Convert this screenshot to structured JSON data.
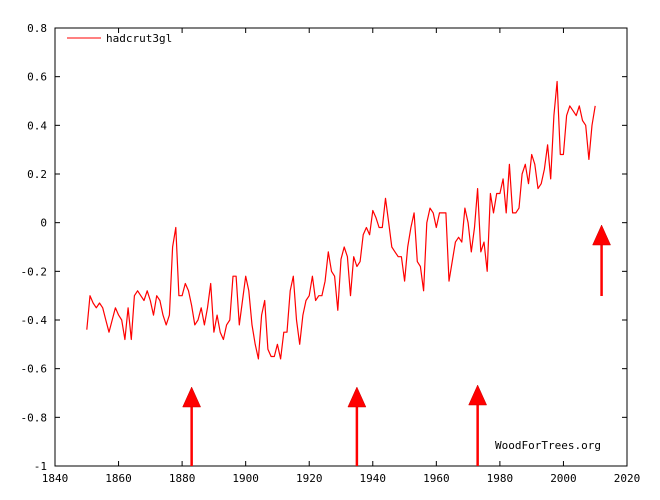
{
  "chart_data": {
    "type": "line",
    "title": "",
    "xlabel": "",
    "ylabel": "",
    "xlim": [
      1840,
      2020
    ],
    "ylim": [
      -1,
      0.8
    ],
    "x_ticks": [
      "1840",
      "1860",
      "1880",
      "1900",
      "1920",
      "1940",
      "1960",
      "1980",
      "2000",
      "2020"
    ],
    "y_ticks": [
      "0.8",
      "0.6",
      "0.4",
      "0.2",
      "0",
      "-0.2",
      "-0.4",
      "-0.6",
      "-0.8",
      "-1"
    ],
    "grid": false,
    "legend_position": "top-left",
    "series": [
      {
        "name": "hadcrut3gl",
        "color": "#ff0000",
        "x": [
          1850,
          1851,
          1852,
          1853,
          1854,
          1855,
          1856,
          1857,
          1858,
          1859,
          1860,
          1861,
          1862,
          1863,
          1864,
          1865,
          1866,
          1867,
          1868,
          1869,
          1870,
          1871,
          1872,
          1873,
          1874,
          1875,
          1876,
          1877,
          1878,
          1879,
          1880,
          1881,
          1882,
          1883,
          1884,
          1885,
          1886,
          1887,
          1888,
          1889,
          1890,
          1891,
          1892,
          1893,
          1894,
          1895,
          1896,
          1897,
          1898,
          1899,
          1900,
          1901,
          1902,
          1903,
          1904,
          1905,
          1906,
          1907,
          1908,
          1909,
          1910,
          1911,
          1912,
          1913,
          1914,
          1915,
          1916,
          1917,
          1918,
          1919,
          1920,
          1921,
          1922,
          1923,
          1924,
          1925,
          1926,
          1927,
          1928,
          1929,
          1930,
          1931,
          1932,
          1933,
          1934,
          1935,
          1936,
          1937,
          1938,
          1939,
          1940,
          1941,
          1942,
          1943,
          1944,
          1945,
          1946,
          1947,
          1948,
          1949,
          1950,
          1951,
          1952,
          1953,
          1954,
          1955,
          1956,
          1957,
          1958,
          1959,
          1960,
          1961,
          1962,
          1963,
          1964,
          1965,
          1966,
          1967,
          1968,
          1969,
          1970,
          1971,
          1972,
          1973,
          1974,
          1975,
          1976,
          1977,
          1978,
          1979,
          1980,
          1981,
          1982,
          1983,
          1984,
          1985,
          1986,
          1987,
          1988,
          1989,
          1990,
          1991,
          1992,
          1993,
          1994,
          1995,
          1996,
          1997,
          1998,
          1999,
          2000,
          2001,
          2002,
          2003,
          2004,
          2005,
          2006,
          2007,
          2008,
          2009,
          2010
        ],
        "values": [
          -0.44,
          -0.3,
          -0.33,
          -0.35,
          -0.33,
          -0.35,
          -0.4,
          -0.45,
          -0.4,
          -0.35,
          -0.38,
          -0.4,
          -0.48,
          -0.35,
          -0.48,
          -0.3,
          -0.28,
          -0.3,
          -0.32,
          -0.28,
          -0.32,
          -0.38,
          -0.3,
          -0.32,
          -0.38,
          -0.42,
          -0.38,
          -0.1,
          -0.02,
          -0.3,
          -0.3,
          -0.25,
          -0.28,
          -0.34,
          -0.42,
          -0.4,
          -0.35,
          -0.42,
          -0.35,
          -0.25,
          -0.45,
          -0.38,
          -0.45,
          -0.48,
          -0.42,
          -0.4,
          -0.22,
          -0.22,
          -0.42,
          -0.32,
          -0.22,
          -0.28,
          -0.42,
          -0.5,
          -0.56,
          -0.38,
          -0.32,
          -0.52,
          -0.55,
          -0.55,
          -0.5,
          -0.56,
          -0.45,
          -0.45,
          -0.28,
          -0.22,
          -0.4,
          -0.5,
          -0.38,
          -0.32,
          -0.3,
          -0.22,
          -0.32,
          -0.3,
          -0.3,
          -0.24,
          -0.12,
          -0.2,
          -0.22,
          -0.36,
          -0.15,
          -0.1,
          -0.14,
          -0.3,
          -0.14,
          -0.18,
          -0.16,
          -0.05,
          -0.02,
          -0.05,
          0.05,
          0.02,
          -0.02,
          -0.02,
          0.1,
          0.0,
          -0.1,
          -0.12,
          -0.14,
          -0.14,
          -0.24,
          -0.1,
          -0.02,
          0.04,
          -0.16,
          -0.18,
          -0.28,
          0.0,
          0.06,
          0.04,
          -0.02,
          0.04,
          0.04,
          0.04,
          -0.24,
          -0.16,
          -0.08,
          -0.06,
          -0.08,
          0.06,
          0.0,
          -0.12,
          -0.02,
          0.14,
          -0.12,
          -0.08,
          -0.2,
          0.12,
          0.04,
          0.12,
          0.12,
          0.18,
          0.04,
          0.24,
          0.04,
          0.04,
          0.06,
          0.2,
          0.24,
          0.16,
          0.28,
          0.24,
          0.14,
          0.16,
          0.22,
          0.32,
          0.18,
          0.44,
          0.58,
          0.28,
          0.28,
          0.44,
          0.48,
          0.46,
          0.44,
          0.48,
          0.42,
          0.4,
          0.26,
          0.4,
          0.48
        ]
      }
    ],
    "annotations": {
      "watermark": "WoodForTrees.org",
      "arrow_years": [
        1883,
        1935,
        1973,
        2012
      ],
      "arrow_color": "#ff0000"
    }
  }
}
